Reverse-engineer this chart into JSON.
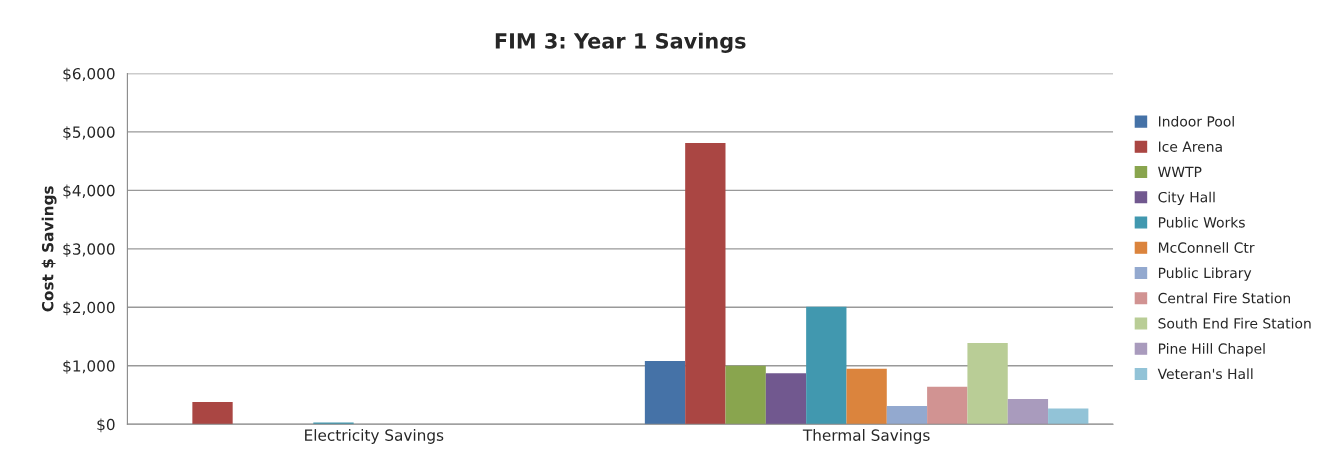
{
  "chart_data": {
    "type": "bar",
    "title": "FIM 3: Year 1 Savings",
    "ylabel": "Cost $ Savings",
    "categories": [
      "Electricity Savings",
      "Thermal Savings"
    ],
    "series": [
      {
        "name": "Indoor Pool",
        "color": "#4572a7",
        "values": [
          0,
          1080
        ]
      },
      {
        "name": "Ice Arena",
        "color": "#aa4643",
        "values": [
          380,
          4810
        ]
      },
      {
        "name": "WWTP",
        "color": "#89a54e",
        "values": [
          0,
          1000
        ]
      },
      {
        "name": "City Hall",
        "color": "#71588f",
        "values": [
          0,
          870
        ]
      },
      {
        "name": "Public Works",
        "color": "#4198af",
        "values": [
          30,
          2010
        ]
      },
      {
        "name": "McConnell Ctr",
        "color": "#db843d",
        "values": [
          0,
          950
        ]
      },
      {
        "name": "Public Library",
        "color": "#93a9cf",
        "values": [
          0,
          310
        ]
      },
      {
        "name": "Central Fire Station",
        "color": "#d19392",
        "values": [
          0,
          640
        ]
      },
      {
        "name": "South End Fire Station",
        "color": "#b9cd96",
        "values": [
          0,
          1390
        ]
      },
      {
        "name": "Pine Hill Chapel",
        "color": "#a99bbd",
        "values": [
          0,
          430
        ]
      },
      {
        "name": "Veteran's Hall",
        "color": "#92c3d7",
        "values": [
          0,
          270
        ]
      }
    ],
    "ylim": [
      0,
      6000
    ],
    "yticks": [
      {
        "value": 0,
        "label": "$0"
      },
      {
        "value": 1000,
        "label": "$1,000"
      },
      {
        "value": 2000,
        "label": "$2,000"
      },
      {
        "value": 3000,
        "label": "$3,000"
      },
      {
        "value": 4000,
        "label": "$4,000"
      },
      {
        "value": 5000,
        "label": "$5,000"
      },
      {
        "value": 6000,
        "label": "$6,000"
      }
    ],
    "grid": "y",
    "legend": "right"
  }
}
